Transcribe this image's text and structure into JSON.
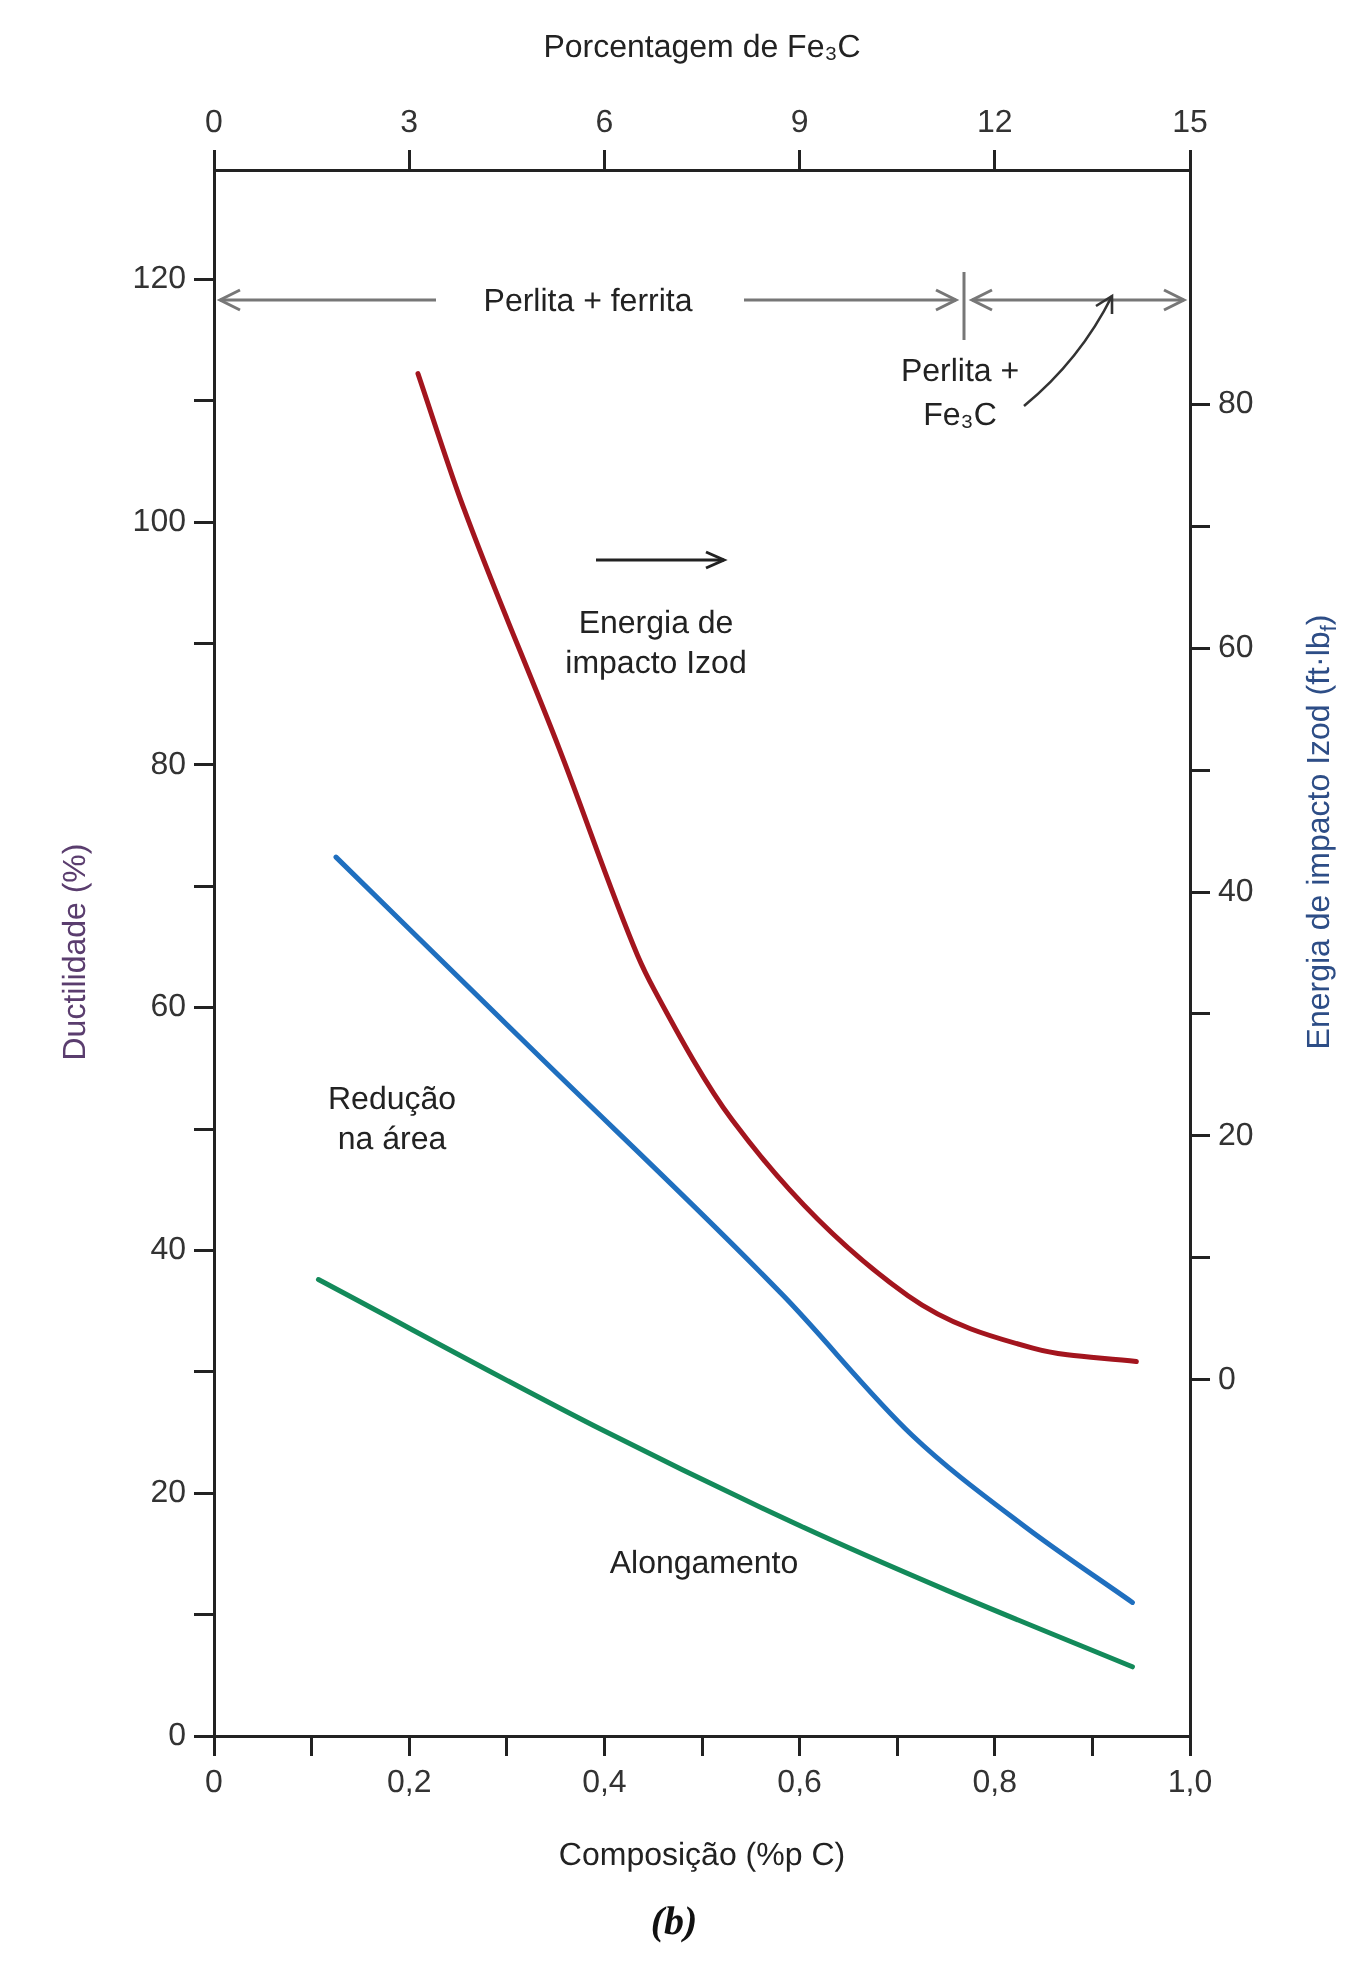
{
  "chart_data": {
    "type": "line",
    "xlabel": "Composição (%p C)",
    "x2label": "Porcentagem de Fe₃C",
    "ylabel": "Ductilidade (%)",
    "y2label": "Energia de impacto Izod (ft·lb$_{f}$)",
    "xlim": [
      0,
      1
    ],
    "xticks": [
      0,
      {
        "value": 0.1,
        "label": null
      },
      {
        "value": 0.2,
        "label": "0,2"
      },
      {
        "value": 0.3,
        "label": null
      },
      {
        "value": 0.4,
        "label": "0,4"
      },
      {
        "value": 0.5,
        "label": null
      },
      {
        "value": 0.6,
        "label": "0,6"
      },
      {
        "value": 0.7,
        "label": null
      },
      {
        "value": 0.8,
        "label": "0,8"
      },
      {
        "value": 0.9,
        "label": null
      },
      {
        "value": 1,
        "label": "1,0"
      }
    ],
    "x2lim": [
      0,
      15
    ],
    "x2ticks": [
      0,
      3,
      6,
      9,
      12,
      15
    ],
    "ylim": [
      0,
      129
    ],
    "yticks": [
      0,
      {
        "value": 10,
        "label": null
      },
      20,
      {
        "value": 30,
        "label": null
      },
      40,
      {
        "value": 50,
        "label": null
      },
      60,
      {
        "value": 70,
        "label": null
      },
      80,
      {
        "value": 90,
        "label": null
      },
      100,
      {
        "value": 110,
        "label": null
      },
      120
    ],
    "y2lim": [
      -29.2,
      99.2
    ],
    "y2ticks": [
      0,
      {
        "value": 10,
        "label": null
      },
      20,
      {
        "value": 30,
        "label": null
      },
      40,
      {
        "value": 50,
        "label": null
      },
      60,
      {
        "value": 70,
        "label": null
      },
      80
    ],
    "legend": false,
    "grid": false,
    "marker": "none",
    "line_style": "solid",
    "annotations": [
      "Perlita + ferrita",
      "Perlita + Fe₃C",
      "(b)"
    ],
    "series": [
      {
        "name": "Energia de impacto Izod",
        "color": "#a3151e",
        "axis": "y2",
        "x": [
          0.209,
          0.253,
          0.354,
          0.434,
          0.451,
          0.531,
          0.711,
          0.839,
          0.945
        ],
        "values": [
          82.5,
          72.1,
          51.7,
          34.8,
          32.0,
          21.3,
          6.9,
          2.6,
          1.5
        ]
      },
      {
        "name": "Redução na área",
        "color": "#1f6fbf",
        "x": [
          0.125,
          0.328,
          0.583,
          0.715,
          0.83,
          0.941
        ],
        "values": [
          72.4,
          56.4,
          36.3,
          24.8,
          17.3,
          11.0
        ]
      },
      {
        "name": "Alongamento",
        "color": "#138a5a",
        "x": [
          0.107,
          0.398,
          0.601,
          0.751,
          0.941
        ],
        "values": [
          37.6,
          25.2,
          17.3,
          12.0,
          5.7
        ]
      }
    ]
  }
}
